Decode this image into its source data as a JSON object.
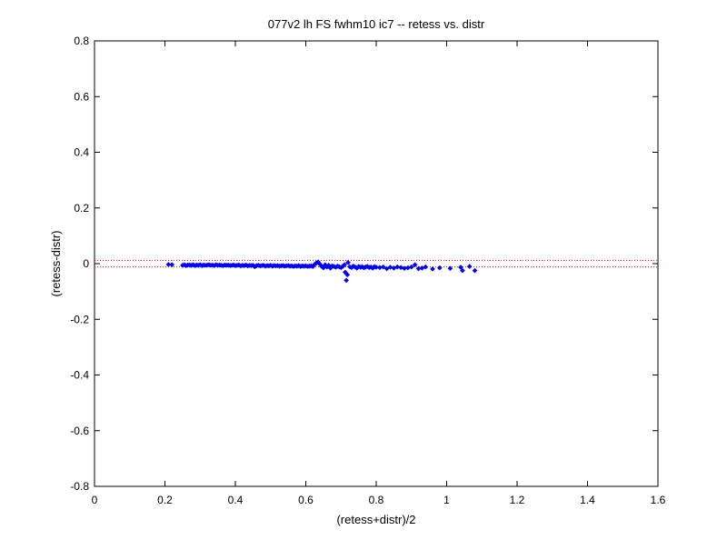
{
  "chart_data": {
    "type": "scatter",
    "title": "077v2 lh FS fwhm10 ic7 -- retess vs. distr",
    "xlabel": "(retess+distr)/2",
    "ylabel": "(retess-distr)",
    "xlim": [
      0,
      1.6
    ],
    "ylim": [
      -0.8,
      0.8
    ],
    "x_ticks": [
      "0",
      "0.2",
      "0.4",
      "0.6",
      "0.8",
      "1",
      "1.2",
      "1.4",
      "1.6"
    ],
    "y_ticks": [
      "-0.8",
      "-0.6",
      "-0.4",
      "-0.2",
      "0",
      "0.2",
      "0.4",
      "0.6",
      "0.8"
    ],
    "grid": false,
    "colors": {
      "points": "#0000ff",
      "reference_lines": "#ff0000"
    },
    "reference_lines": [
      0.012,
      -0.012
    ],
    "series": [
      {
        "points": [
          [
            0.21,
            -0.003
          ],
          [
            0.22,
            -0.004
          ],
          [
            0.25,
            -0.006
          ],
          [
            0.255,
            -0.004
          ],
          [
            0.26,
            -0.007
          ],
          [
            0.265,
            -0.005
          ],
          [
            0.27,
            -0.005
          ],
          [
            0.275,
            -0.006
          ],
          [
            0.28,
            -0.004
          ],
          [
            0.285,
            -0.007
          ],
          [
            0.29,
            -0.005
          ],
          [
            0.295,
            -0.006
          ],
          [
            0.3,
            -0.004
          ],
          [
            0.305,
            -0.007
          ],
          [
            0.31,
            -0.005
          ],
          [
            0.315,
            -0.006
          ],
          [
            0.32,
            -0.005
          ],
          [
            0.325,
            -0.004
          ],
          [
            0.33,
            -0.006
          ],
          [
            0.335,
            -0.005
          ],
          [
            0.34,
            -0.007
          ],
          [
            0.345,
            -0.004
          ],
          [
            0.35,
            -0.006
          ],
          [
            0.355,
            -0.005
          ],
          [
            0.36,
            -0.006
          ],
          [
            0.365,
            -0.007
          ],
          [
            0.37,
            -0.005
          ],
          [
            0.375,
            -0.006
          ],
          [
            0.38,
            -0.005
          ],
          [
            0.385,
            -0.007
          ],
          [
            0.39,
            -0.006
          ],
          [
            0.395,
            -0.005
          ],
          [
            0.4,
            -0.007
          ],
          [
            0.405,
            -0.006
          ],
          [
            0.41,
            -0.005
          ],
          [
            0.415,
            -0.008
          ],
          [
            0.42,
            -0.006
          ],
          [
            0.425,
            -0.007
          ],
          [
            0.43,
            -0.005
          ],
          [
            0.435,
            -0.008
          ],
          [
            0.44,
            -0.006
          ],
          [
            0.445,
            -0.007
          ],
          [
            0.45,
            -0.006
          ],
          [
            0.455,
            -0.011
          ],
          [
            0.46,
            -0.007
          ],
          [
            0.465,
            -0.006
          ],
          [
            0.47,
            -0.008
          ],
          [
            0.475,
            -0.007
          ],
          [
            0.48,
            -0.006
          ],
          [
            0.485,
            -0.009
          ],
          [
            0.49,
            -0.007
          ],
          [
            0.495,
            -0.008
          ],
          [
            0.5,
            -0.006
          ],
          [
            0.505,
            -0.009
          ],
          [
            0.51,
            -0.007
          ],
          [
            0.515,
            -0.008
          ],
          [
            0.52,
            -0.007
          ],
          [
            0.525,
            -0.009
          ],
          [
            0.53,
            -0.008
          ],
          [
            0.535,
            -0.007
          ],
          [
            0.54,
            -0.009
          ],
          [
            0.545,
            -0.008
          ],
          [
            0.55,
            -0.007
          ],
          [
            0.555,
            -0.009
          ],
          [
            0.56,
            -0.008
          ],
          [
            0.565,
            -0.01
          ],
          [
            0.57,
            -0.008
          ],
          [
            0.575,
            -0.009
          ],
          [
            0.58,
            -0.007
          ],
          [
            0.585,
            -0.01
          ],
          [
            0.59,
            -0.008
          ],
          [
            0.595,
            -0.009
          ],
          [
            0.6,
            -0.008
          ],
          [
            0.605,
            -0.01
          ],
          [
            0.61,
            -0.009
          ],
          [
            0.615,
            -0.008
          ],
          [
            0.62,
            -0.01
          ],
          [
            0.625,
            -0.003
          ],
          [
            0.63,
            0.002
          ],
          [
            0.635,
            0.006
          ],
          [
            0.64,
            -0.002
          ],
          [
            0.645,
            -0.01
          ],
          [
            0.65,
            -0.015
          ],
          [
            0.655,
            -0.004
          ],
          [
            0.66,
            -0.012
          ],
          [
            0.665,
            -0.006
          ],
          [
            0.67,
            -0.016
          ],
          [
            0.675,
            -0.008
          ],
          [
            0.68,
            -0.01
          ],
          [
            0.685,
            -0.013
          ],
          [
            0.69,
            -0.009
          ],
          [
            0.695,
            -0.011
          ],
          [
            0.7,
            -0.014
          ],
          [
            0.705,
            -0.01
          ],
          [
            0.71,
            -0.004
          ],
          [
            0.712,
            -0.031
          ],
          [
            0.715,
            -0.06
          ],
          [
            0.718,
            -0.04
          ],
          [
            0.72,
            0.004
          ],
          [
            0.725,
            -0.011
          ],
          [
            0.73,
            -0.014
          ],
          [
            0.735,
            -0.009
          ],
          [
            0.74,
            -0.012
          ],
          [
            0.745,
            -0.016
          ],
          [
            0.75,
            -0.01
          ],
          [
            0.755,
            -0.013
          ],
          [
            0.76,
            -0.011
          ],
          [
            0.765,
            -0.015
          ],
          [
            0.77,
            -0.012
          ],
          [
            0.775,
            -0.01
          ],
          [
            0.78,
            -0.014
          ],
          [
            0.785,
            -0.012
          ],
          [
            0.79,
            -0.016
          ],
          [
            0.795,
            -0.011
          ],
          [
            0.8,
            -0.013
          ],
          [
            0.81,
            -0.014
          ],
          [
            0.82,
            -0.012
          ],
          [
            0.83,
            -0.018
          ],
          [
            0.84,
            -0.013
          ],
          [
            0.85,
            -0.016
          ],
          [
            0.86,
            -0.012
          ],
          [
            0.87,
            -0.014
          ],
          [
            0.88,
            -0.017
          ],
          [
            0.89,
            -0.015
          ],
          [
            0.9,
            -0.012
          ],
          [
            0.91,
            -0.004
          ],
          [
            0.92,
            -0.018
          ],
          [
            0.93,
            -0.016
          ],
          [
            0.94,
            -0.012
          ],
          [
            0.96,
            -0.019
          ],
          [
            0.98,
            -0.015
          ],
          [
            1.01,
            -0.017
          ],
          [
            1.04,
            -0.013
          ],
          [
            1.045,
            -0.025
          ],
          [
            1.065,
            -0.01
          ],
          [
            1.08,
            -0.025
          ]
        ]
      }
    ]
  }
}
